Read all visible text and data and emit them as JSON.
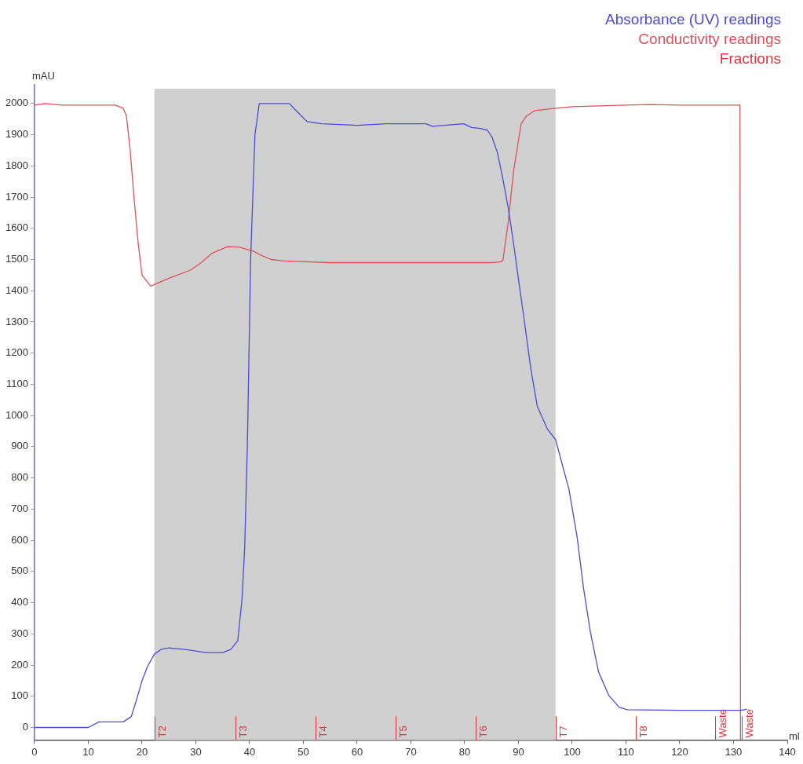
{
  "chart_data": {
    "type": "line",
    "xlabel": "ml",
    "ylabel": "mAU",
    "xlim": [
      0,
      140
    ],
    "ylim": [
      -40,
      2060
    ],
    "xticks": [
      0,
      10,
      20,
      30,
      40,
      50,
      60,
      70,
      80,
      90,
      100,
      110,
      120,
      130,
      140
    ],
    "yticks": [
      0,
      100,
      200,
      300,
      400,
      500,
      600,
      700,
      800,
      900,
      1000,
      1100,
      1200,
      1300,
      1400,
      1500,
      1600,
      1700,
      1800,
      1900,
      2000
    ],
    "grid": false,
    "legend": "top right",
    "marker": "none",
    "line_style": "solid",
    "series": [
      {
        "name": "Absorbance (UV) readings",
        "color": "#4b4bd6",
        "x": [
          0,
          10,
          12,
          16.5,
          18,
          19,
          20,
          21,
          22.3,
          23.5,
          25,
          28,
          32,
          35,
          36.5,
          37.8,
          38.6,
          39.1,
          39.6,
          40.2,
          41,
          41.8,
          47.4,
          48.5,
          50.7,
          53.4,
          60,
          65.4,
          72.8,
          74,
          79.8,
          81.3,
          82.9,
          84.2,
          85.1,
          86.1,
          87.1,
          88.1,
          89.1,
          90.1,
          91,
          92.3,
          93.5,
          95.4,
          96.9,
          99.4,
          100.9,
          102.1,
          103.4,
          104.9,
          106.8,
          108.7,
          110.2,
          120,
          131.3,
          132.5
        ],
        "values": [
          0,
          0,
          18,
          18,
          35,
          90,
          150,
          195,
          235,
          250,
          255,
          250,
          240,
          240,
          250,
          278,
          412,
          580,
          913,
          1500,
          1900,
          2000,
          2000,
          1980,
          1942,
          1935,
          1930,
          1935,
          1935,
          1927,
          1935,
          1923,
          1920,
          1915,
          1892,
          1842,
          1759,
          1666,
          1551,
          1425,
          1315,
          1150,
          1030,
          956,
          923,
          763,
          612,
          447,
          304,
          178,
          103,
          65,
          57,
          55,
          55,
          58
        ]
      },
      {
        "name": "Conductivity readings",
        "color": "#e0505a",
        "x": [
          0,
          2,
          5,
          15,
          16.5,
          17.1,
          17.8,
          18.5,
          19.3,
          20,
          21.6,
          22.3,
          25,
          29,
          31,
          33,
          35.9,
          38,
          40.8,
          42,
          44,
          46.2,
          55,
          65,
          75,
          85,
          86.5,
          87.1,
          88.1,
          89.1,
          90.5,
          91.5,
          93,
          96.9,
          100,
          110,
          114.6,
          120,
          131.2,
          131.3
        ],
        "values": [
          1995,
          2000,
          1995,
          1995,
          1985,
          1960,
          1850,
          1700,
          1550,
          1450,
          1415,
          1420,
          1440,
          1466,
          1490,
          1520,
          1541,
          1540,
          1526,
          1515,
          1500,
          1496,
          1490,
          1490,
          1490,
          1490,
          1492,
          1496,
          1620,
          1784,
          1935,
          1960,
          1977,
          1985,
          1990,
          1995,
          1997,
          1995,
          1995,
          -40
        ]
      }
    ],
    "bands": [
      {
        "axis": "x",
        "from": 22.3,
        "to": 96.9,
        "color": "#d0d0d0"
      }
    ],
    "ref_lines": [
      {
        "axis": "x",
        "value": 22.3,
        "label": "T2",
        "color": "#e8303a"
      },
      {
        "axis": "x",
        "value": 37.4,
        "label": "T3",
        "color": "#e8303a"
      },
      {
        "axis": "x",
        "value": 52.2,
        "label": "T4",
        "color": "#e8303a"
      },
      {
        "axis": "x",
        "value": 67.1,
        "label": "T5",
        "color": "#e8303a"
      },
      {
        "axis": "x",
        "value": 82.1,
        "label": "T6",
        "color": "#e8303a"
      },
      {
        "axis": "x",
        "value": 96.9,
        "label": "T7",
        "color": "#e8303a"
      },
      {
        "axis": "x",
        "value": 111.8,
        "label": "T8",
        "color": "#e8303a"
      },
      {
        "axis": "x",
        "value": 126.6,
        "label": "Waste",
        "color": "#e8303a"
      },
      {
        "axis": "x",
        "value": 131.5,
        "label": "Waste",
        "color": "#e8303a"
      }
    ],
    "annotations": [
      "Fractions"
    ]
  }
}
